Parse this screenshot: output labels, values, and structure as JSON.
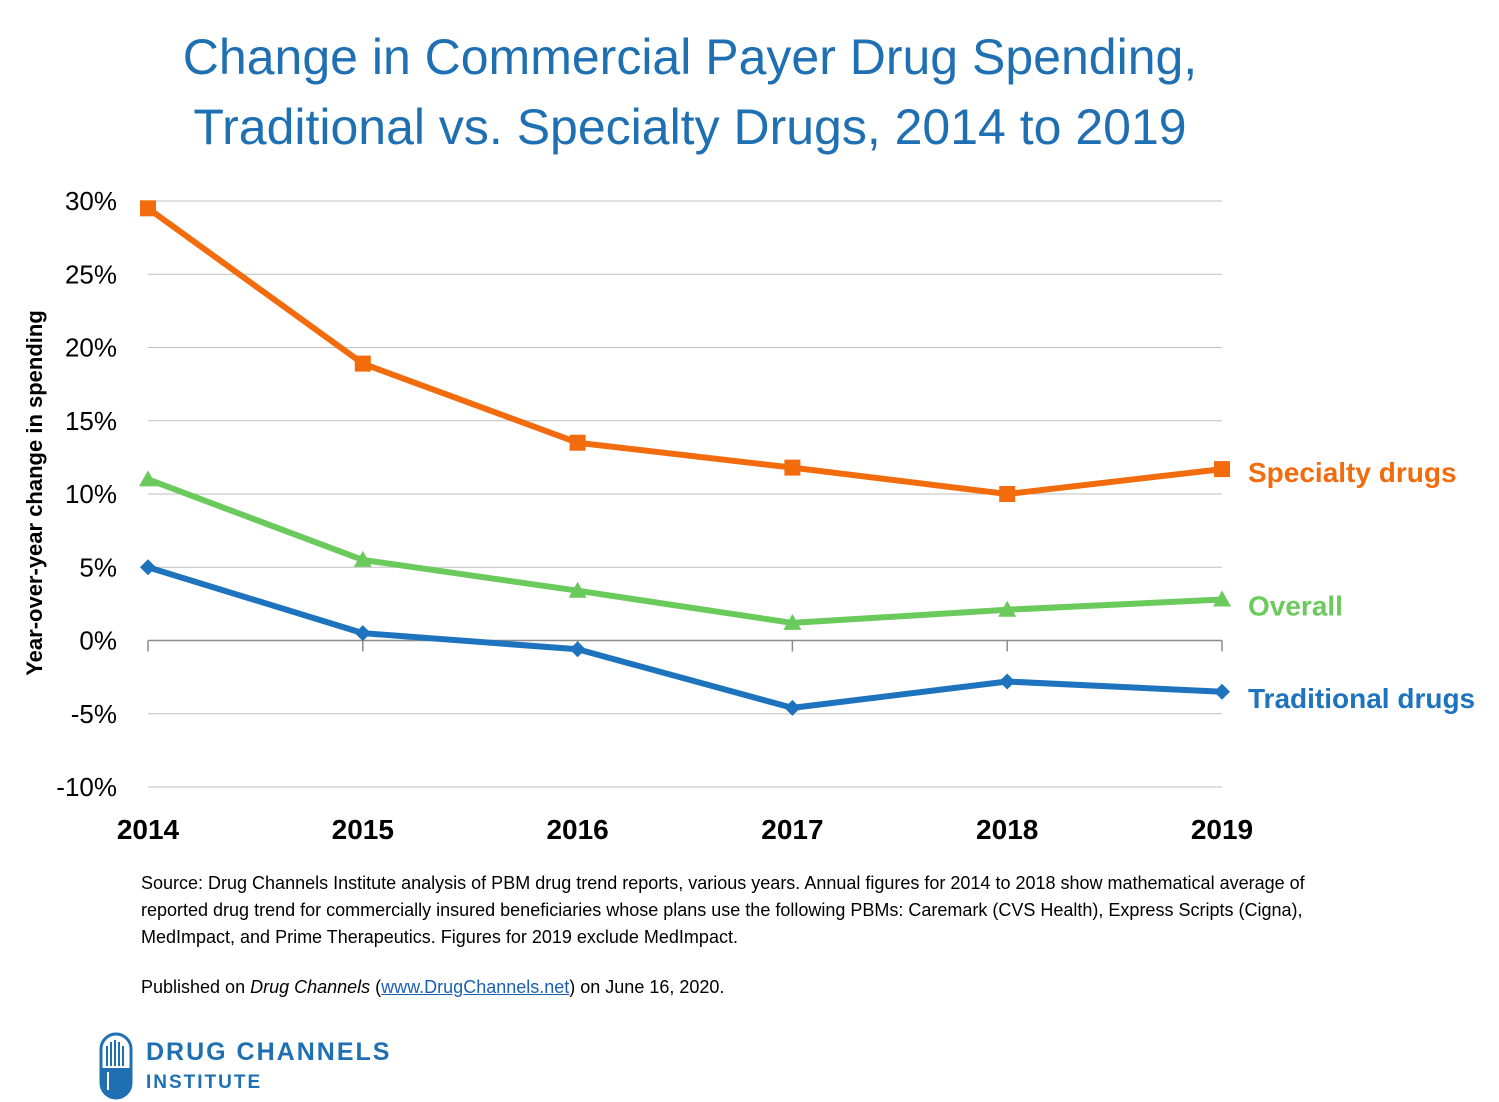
{
  "title": {
    "line1": "Change in Commercial Payer Drug Spending,",
    "line2": "Traditional vs. Specialty Drugs, 2014 to 2019"
  },
  "colors": {
    "title": "#1f6fb3",
    "specialty": "#f26c0d",
    "overall": "#6acb5c",
    "traditional": "#1e73be"
  },
  "chart_data": {
    "type": "line",
    "title": "Change in Commercial Payer Drug Spending, Traditional vs. Specialty Drugs, 2014 to 2019",
    "xlabel": "",
    "ylabel": "Year-over-year change in spending",
    "categories": [
      "2014",
      "2015",
      "2016",
      "2017",
      "2018",
      "2019"
    ],
    "ylim": [
      -10,
      30
    ],
    "yticks": [
      30,
      25,
      20,
      15,
      10,
      5,
      0,
      -5,
      -10
    ],
    "ytick_labels": [
      "30%",
      "25%",
      "20%",
      "15%",
      "10%",
      "5%",
      "0%",
      "-5%",
      "-10%"
    ],
    "grid": true,
    "series": [
      {
        "name": "Specialty drugs",
        "color": "#f26c0d",
        "marker": "square",
        "values": [
          29.5,
          18.9,
          13.5,
          11.8,
          10.0,
          11.7
        ]
      },
      {
        "name": "Overall",
        "color": "#6acb5c",
        "marker": "triangle",
        "values": [
          11.0,
          5.5,
          3.4,
          1.2,
          2.1,
          2.8
        ]
      },
      {
        "name": "Traditional drugs",
        "color": "#1e73be",
        "marker": "diamond",
        "values": [
          5.0,
          0.5,
          -0.6,
          -4.6,
          -2.8,
          -3.5
        ]
      }
    ]
  },
  "footer": {
    "source": "Source: Drug Channels Institute analysis of PBM drug trend reports, various years. Annual figures for 2014 to 2018 show mathematical average of reported drug trend for commercially insured beneficiaries whose plans use the following PBMs: Caremark (CVS Health), Express Scripts (Cigna), MedImpact, and Prime Therapeutics. Figures for 2019 exclude MedImpact.",
    "published_prefix": "Published on ",
    "published_pub": "Drug Channels",
    "published_open": " (",
    "published_link": "www.DrugChannels.net",
    "published_suffix": ") on June 16, 2020."
  },
  "logo": {
    "line1": "DRUG CHANNELS",
    "line2": "INSTITUTE"
  }
}
